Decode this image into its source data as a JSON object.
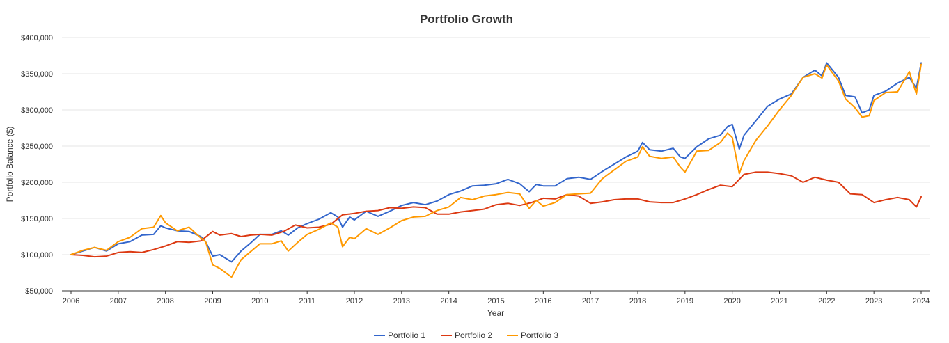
{
  "chart_data": {
    "type": "line",
    "title": "Portfolio Growth",
    "xlabel": "Year",
    "ylabel": "Portfolio Balance ($)",
    "xlim": [
      2006,
      2024
    ],
    "ylim": [
      50000,
      400000
    ],
    "x_ticks": [
      "2006",
      "2007",
      "2008",
      "2009",
      "2010",
      "2011",
      "2012",
      "2013",
      "2014",
      "2015",
      "2016",
      "2017",
      "2018",
      "2019",
      "2020",
      "2021",
      "2022",
      "2023",
      "2024"
    ],
    "y_ticks": [
      "$50,000",
      "$100,000",
      "$150,000",
      "$200,000",
      "$250,000",
      "$300,000",
      "$350,000",
      "$400,000"
    ],
    "y_tick_values": [
      50000,
      100000,
      150000,
      200000,
      250000,
      300000,
      350000,
      400000
    ],
    "grid": true,
    "legend": "bottom",
    "series": [
      {
        "name": "Portfolio 1",
        "color": "#3366cc",
        "x": [
          2006.0,
          2006.25,
          2006.5,
          2006.75,
          2007.0,
          2007.25,
          2007.5,
          2007.75,
          2007.9,
          2008.0,
          2008.25,
          2008.5,
          2008.75,
          2008.85,
          2009.0,
          2009.15,
          2009.4,
          2009.6,
          2009.8,
          2010.0,
          2010.25,
          2010.45,
          2010.6,
          2010.8,
          2011.0,
          2011.25,
          2011.5,
          2011.65,
          2011.75,
          2011.9,
          2012.0,
          2012.25,
          2012.5,
          2012.75,
          2013.0,
          2013.25,
          2013.5,
          2013.75,
          2014.0,
          2014.25,
          2014.5,
          2014.75,
          2015.0,
          2015.25,
          2015.5,
          2015.7,
          2015.85,
          2016.0,
          2016.25,
          2016.5,
          2016.75,
          2017.0,
          2017.25,
          2017.5,
          2017.75,
          2018.0,
          2018.1,
          2018.25,
          2018.5,
          2018.75,
          2018.9,
          2019.0,
          2019.25,
          2019.5,
          2019.75,
          2019.9,
          2020.0,
          2020.15,
          2020.25,
          2020.5,
          2020.75,
          2021.0,
          2021.25,
          2021.5,
          2021.75,
          2021.9,
          2022.0,
          2022.25,
          2022.4,
          2022.6,
          2022.75,
          2022.9,
          2023.0,
          2023.25,
          2023.5,
          2023.75,
          2023.9,
          2024.0
        ],
        "values": [
          100000,
          105000,
          110000,
          105000,
          115000,
          118000,
          127000,
          128000,
          140000,
          137000,
          133000,
          132000,
          125000,
          118000,
          98000,
          100000,
          90000,
          105000,
          116000,
          128000,
          128000,
          133000,
          127000,
          137000,
          143000,
          149000,
          158000,
          152000,
          138000,
          152000,
          148000,
          160000,
          153000,
          160000,
          168000,
          172000,
          169000,
          174000,
          183000,
          188000,
          195000,
          196000,
          198000,
          204000,
          198000,
          187000,
          197000,
          195000,
          195000,
          205000,
          207000,
          204000,
          215000,
          225000,
          235000,
          243000,
          255000,
          245000,
          243000,
          247000,
          235000,
          233000,
          249000,
          260000,
          265000,
          277000,
          280000,
          246000,
          265000,
          285000,
          305000,
          315000,
          322000,
          345000,
          355000,
          347000,
          365000,
          345000,
          320000,
          318000,
          296000,
          300000,
          320000,
          326000,
          337000,
          345000,
          330000,
          365000
        ]
      },
      {
        "name": "Portfolio 2",
        "color": "#dc3912",
        "x": [
          2006.0,
          2006.25,
          2006.5,
          2006.75,
          2007.0,
          2007.25,
          2007.5,
          2007.75,
          2008.0,
          2008.25,
          2008.5,
          2008.75,
          2009.0,
          2009.15,
          2009.4,
          2009.6,
          2009.8,
          2010.0,
          2010.25,
          2010.5,
          2010.75,
          2011.0,
          2011.25,
          2011.5,
          2011.75,
          2012.0,
          2012.25,
          2012.5,
          2012.75,
          2013.0,
          2013.25,
          2013.5,
          2013.75,
          2014.0,
          2014.25,
          2014.5,
          2014.75,
          2015.0,
          2015.25,
          2015.5,
          2015.75,
          2016.0,
          2016.25,
          2016.5,
          2016.75,
          2017.0,
          2017.25,
          2017.5,
          2017.75,
          2018.0,
          2018.25,
          2018.5,
          2018.75,
          2019.0,
          2019.25,
          2019.5,
          2019.75,
          2020.0,
          2020.25,
          2020.5,
          2020.75,
          2021.0,
          2021.25,
          2021.5,
          2021.75,
          2022.0,
          2022.25,
          2022.5,
          2022.75,
          2023.0,
          2023.25,
          2023.5,
          2023.75,
          2023.9,
          2024.0
        ],
        "values": [
          100000,
          99000,
          97000,
          98000,
          103000,
          104000,
          103000,
          107000,
          112000,
          118000,
          117000,
          119000,
          132000,
          127000,
          129000,
          125000,
          127000,
          128000,
          127000,
          132000,
          141000,
          137000,
          138000,
          142000,
          155000,
          157000,
          160000,
          161000,
          165000,
          164000,
          166000,
          165000,
          156000,
          156000,
          159000,
          161000,
          163000,
          169000,
          171000,
          168000,
          172000,
          178000,
          177000,
          183000,
          181000,
          171000,
          173000,
          176000,
          177000,
          177000,
          173000,
          172000,
          172000,
          177000,
          183000,
          190000,
          196000,
          194000,
          211000,
          214000,
          214000,
          212000,
          209000,
          200000,
          207000,
          203000,
          200000,
          184000,
          183000,
          172000,
          176000,
          179000,
          176000,
          166000,
          180000
        ]
      },
      {
        "name": "Portfolio 3",
        "color": "#ff9900",
        "x": [
          2006.0,
          2006.25,
          2006.5,
          2006.75,
          2007.0,
          2007.25,
          2007.5,
          2007.75,
          2007.9,
          2008.0,
          2008.25,
          2008.5,
          2008.75,
          2008.85,
          2009.0,
          2009.15,
          2009.4,
          2009.6,
          2009.8,
          2010.0,
          2010.25,
          2010.45,
          2010.6,
          2010.8,
          2011.0,
          2011.25,
          2011.5,
          2011.65,
          2011.75,
          2011.9,
          2012.0,
          2012.25,
          2012.5,
          2012.75,
          2013.0,
          2013.25,
          2013.5,
          2013.75,
          2014.0,
          2014.25,
          2014.5,
          2014.75,
          2015.0,
          2015.25,
          2015.5,
          2015.7,
          2015.85,
          2016.0,
          2016.25,
          2016.5,
          2016.75,
          2017.0,
          2017.25,
          2017.5,
          2017.75,
          2018.0,
          2018.1,
          2018.25,
          2018.5,
          2018.75,
          2018.9,
          2019.0,
          2019.25,
          2019.5,
          2019.75,
          2019.9,
          2020.0,
          2020.15,
          2020.25,
          2020.5,
          2020.75,
          2021.0,
          2021.25,
          2021.5,
          2021.75,
          2021.9,
          2022.0,
          2022.25,
          2022.4,
          2022.6,
          2022.75,
          2022.9,
          2023.0,
          2023.25,
          2023.5,
          2023.75,
          2023.9,
          2024.0
        ],
        "values": [
          100000,
          106000,
          110000,
          106000,
          118000,
          124000,
          136000,
          138000,
          154000,
          144000,
          133000,
          138000,
          123000,
          118000,
          86000,
          81000,
          69000,
          93000,
          104000,
          115000,
          115000,
          119000,
          105000,
          117000,
          128000,
          135000,
          144000,
          138000,
          111000,
          124000,
          122000,
          136000,
          128000,
          137000,
          147000,
          152000,
          153000,
          161000,
          166000,
          179000,
          176000,
          181000,
          183000,
          186000,
          184000,
          164000,
          175000,
          167000,
          172000,
          183000,
          184000,
          185000,
          205000,
          217000,
          229000,
          235000,
          249000,
          236000,
          233000,
          235000,
          221000,
          214000,
          243000,
          244000,
          255000,
          268000,
          262000,
          212000,
          230000,
          258000,
          278000,
          300000,
          320000,
          345000,
          350000,
          344000,
          362000,
          340000,
          315000,
          303000,
          290000,
          292000,
          313000,
          324000,
          325000,
          353000,
          322000,
          363000
        ]
      }
    ]
  }
}
